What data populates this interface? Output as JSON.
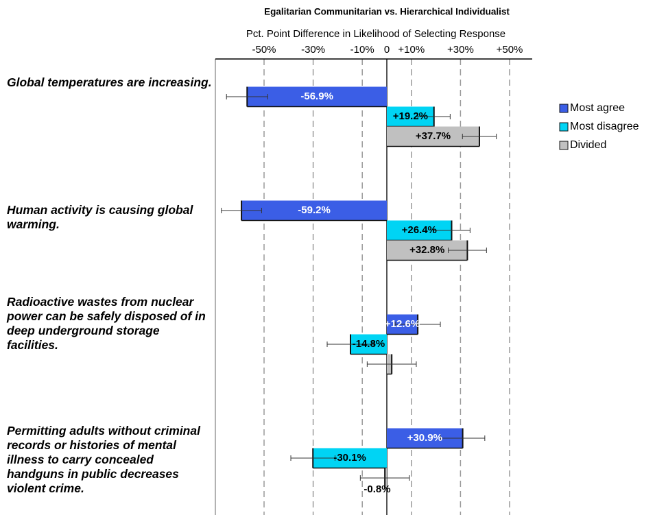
{
  "chart_data": {
    "type": "bar",
    "orientation": "horizontal",
    "title": "Egalitarian Communitarian vs. Hierarchical Individualist",
    "xlabel": "Pct. Point Difference in Likelihood of Selecting Response",
    "categories": [
      "Global temperatures are increasing.",
      "Human activity is causing global warming.",
      "Radioactive wastes from nuclear power can be safely disposed of in deep underground storage facilities.",
      "Permitting adults without criminal records or histories of mental illness to carry concealed handguns in public decreases violent crime."
    ],
    "series": [
      {
        "name": "Most agree",
        "color": "#3b5ee6",
        "values": [
          -56.9,
          -59.2,
          12.6,
          30.9
        ],
        "value_labels": [
          "-56.9%",
          "-59.2%",
          "+12.6%",
          "+30.9%"
        ],
        "errors": [
          8.4,
          8.2,
          9.2,
          9
        ]
      },
      {
        "name": "Most disagree",
        "color": "#00d4f4",
        "values": [
          19.2,
          26.4,
          -14.8,
          -30.1
        ],
        "value_labels": [
          "+19.2%",
          "+26.4%",
          "-14.8%",
          "-30.1%"
        ],
        "errors": [
          6.6,
          7.5,
          9.5,
          9
        ]
      },
      {
        "name": "Divided",
        "color": "#c0c0c0",
        "values": [
          37.7,
          32.8,
          2,
          -0.8
        ],
        "value_labels": [
          "+37.7%",
          "+32.8%",
          null,
          "-0.8%"
        ],
        "errors": [
          6.9,
          7.8,
          10,
          10
        ]
      }
    ],
    "xlim": [
      -70,
      60
    ],
    "xticks": [
      {
        "value": -50,
        "label": "-50%"
      },
      {
        "value": -30,
        "label": "-30%"
      },
      {
        "value": -10,
        "label": "-10%"
      },
      0,
      {
        "value": 10,
        "label": "+10%"
      },
      {
        "value": 30,
        "label": "+30%"
      },
      {
        "value": 50,
        "label": "+50%"
      }
    ],
    "grid": true,
    "legend": "right"
  }
}
